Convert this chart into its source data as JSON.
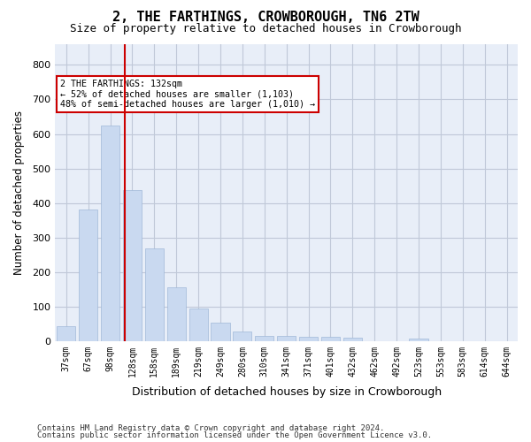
{
  "title": "2, THE FARTHINGS, CROWBOROUGH, TN6 2TW",
  "subtitle": "Size of property relative to detached houses in Crowborough",
  "xlabel": "Distribution of detached houses by size in Crowborough",
  "ylabel": "Number of detached properties",
  "categories": [
    "37sqm",
    "67sqm",
    "98sqm",
    "128sqm",
    "158sqm",
    "189sqm",
    "219sqm",
    "249sqm",
    "280sqm",
    "310sqm",
    "341sqm",
    "371sqm",
    "401sqm",
    "432sqm",
    "462sqm",
    "492sqm",
    "523sqm",
    "553sqm",
    "583sqm",
    "614sqm",
    "644sqm"
  ],
  "values": [
    44,
    382,
    625,
    438,
    268,
    155,
    95,
    52,
    28,
    16,
    16,
    11,
    11,
    10,
    0,
    0,
    8,
    0,
    0,
    0,
    0
  ],
  "bar_color": "#c9d9f0",
  "bar_edge_color": "#a0b8d8",
  "grid_color": "#c0c8d8",
  "background_color": "#e8eef8",
  "vline_x_index": 2.67,
  "vline_color": "#cc0000",
  "annotation_text": "2 THE FARTHINGS: 132sqm\n← 52% of detached houses are smaller (1,103)\n48% of semi-detached houses are larger (1,010) →",
  "annotation_box_color": "#ffffff",
  "annotation_box_edge": "#cc0000",
  "ylim": [
    0,
    860
  ],
  "yticks": [
    0,
    100,
    200,
    300,
    400,
    500,
    600,
    700,
    800
  ],
  "footnote1": "Contains HM Land Registry data © Crown copyright and database right 2024.",
  "footnote2": "Contains public sector information licensed under the Open Government Licence v3.0."
}
